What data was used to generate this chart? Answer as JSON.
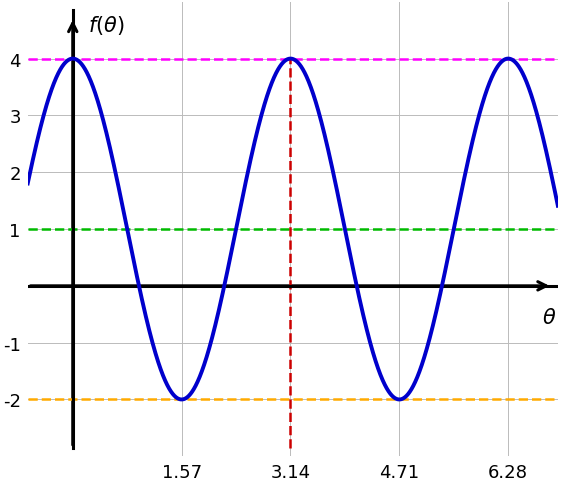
{
  "amplitude": 3,
  "vertical_shift": 1,
  "frequency_multiplier": 2,
  "use_cos": true,
  "x_min": -0.65,
  "x_max": 7.0,
  "y_min": -2.85,
  "y_max": 4.85,
  "x_ticks": [
    1.57,
    3.14,
    4.71,
    6.28
  ],
  "x_tick_labels": [
    "1.57",
    "3.14",
    "4.71",
    "6.28"
  ],
  "y_ticks": [
    -2,
    -1,
    1,
    2,
    3,
    4
  ],
  "hline_magenta_y": 4,
  "hline_green_y": 1,
  "hline_orange_y": -2,
  "vline_red_x1": 0.0,
  "vline_red_x2": 3.14159,
  "curve_color": "#0000cc",
  "hline_magenta_color": "#ff00ff",
  "hline_green_color": "#00bb00",
  "hline_orange_color": "#ffaa00",
  "vline_red_color": "#cc0000",
  "curve_linewidth": 2.8,
  "hline_linewidth": 1.8,
  "vline_linewidth": 1.8,
  "grid_color": "#bbbbbb",
  "grid_linewidth": 0.7,
  "axis_linewidth": 2.2,
  "background_color": "#ffffff",
  "tick_fontsize": 13,
  "label_fontsize": 15
}
